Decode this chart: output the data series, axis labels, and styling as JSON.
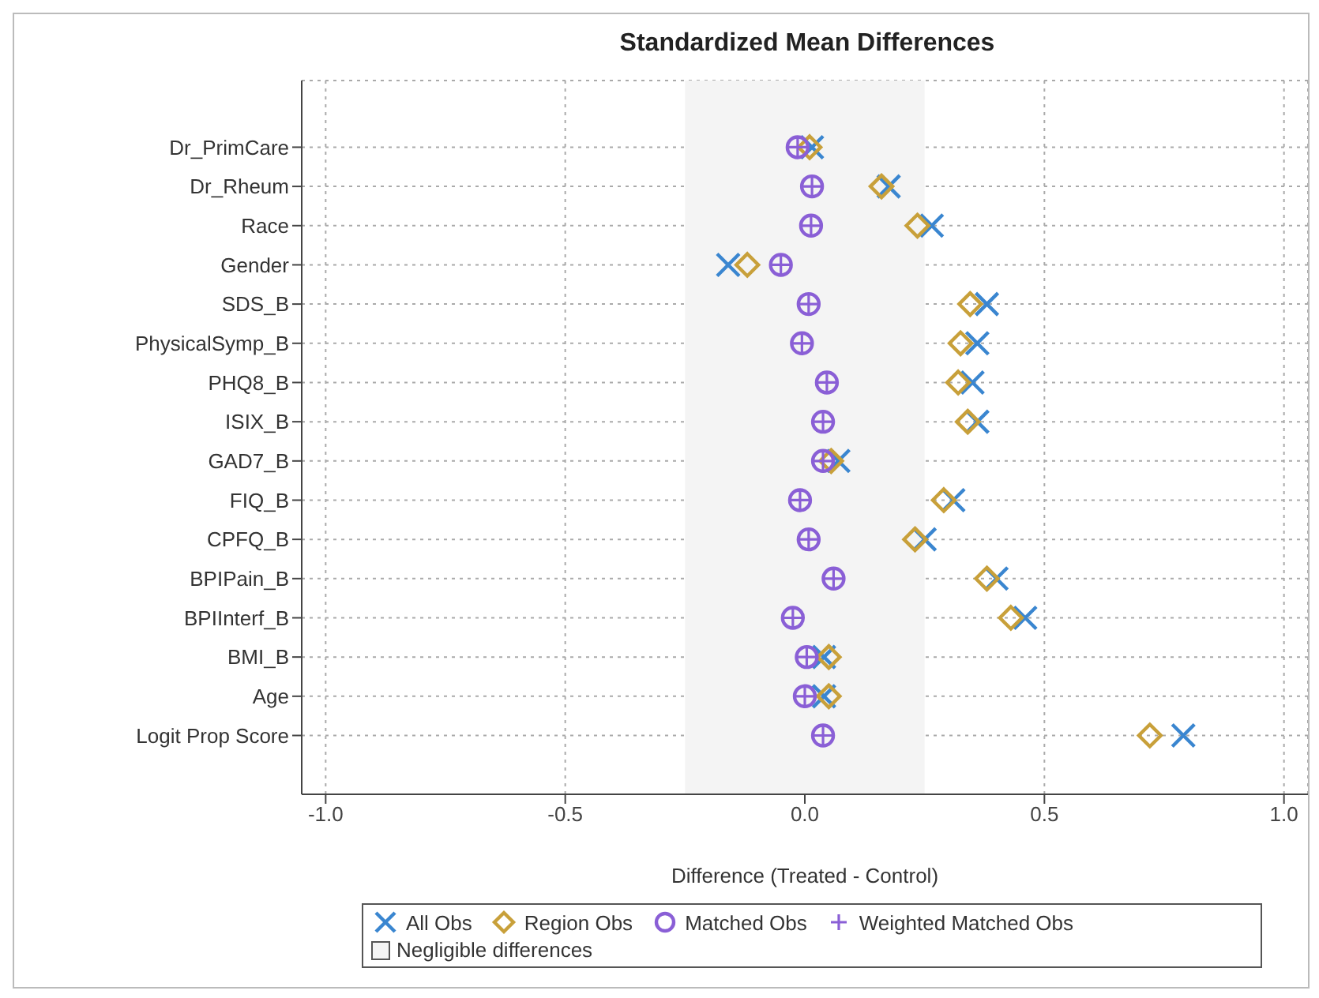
{
  "chart_data": {
    "type": "scatter",
    "title": "Standardized Mean Differences",
    "xlabel": "Difference (Treated - Control)",
    "categories": [
      "Dr_PrimCare",
      "Dr_Rheum",
      "Race",
      "Gender",
      "SDS_B",
      "PhysicalSymp_B",
      "PHQ8_B",
      "ISIX_B",
      "GAD7_B",
      "FIQ_B",
      "CPFQ_B",
      "BPIPain_B",
      "BPIInterf_B",
      "BMI_B",
      "Age",
      "Logit Prop Score"
    ],
    "orientation": "horizontal",
    "series": [
      {
        "name": "All Obs",
        "color": "#3a86d0",
        "marker": "cross",
        "values": [
          0.015,
          0.175,
          0.265,
          -0.16,
          0.38,
          0.36,
          0.35,
          0.36,
          0.07,
          0.31,
          0.25,
          0.4,
          0.46,
          0.04,
          0.04,
          0.79
        ]
      },
      {
        "name": "Region Obs",
        "color": "#c8a03a",
        "marker": "diamond",
        "values": [
          0.01,
          0.16,
          0.235,
          -0.12,
          0.345,
          0.325,
          0.32,
          0.34,
          0.055,
          0.29,
          0.23,
          0.38,
          0.43,
          0.05,
          0.05,
          0.72
        ]
      },
      {
        "name": "Matched Obs",
        "color": "#8a5fd6",
        "marker": "circle",
        "values": [
          -0.015,
          0.015,
          0.013,
          -0.05,
          0.008,
          -0.006,
          0.046,
          0.038,
          0.038,
          -0.01,
          0.008,
          0.06,
          -0.025,
          0.004,
          0.0,
          0.038
        ]
      },
      {
        "name": "Weighted Matched Obs",
        "color": "#8a5fd6",
        "marker": "plus",
        "values": [
          -0.015,
          0.015,
          0.013,
          -0.05,
          0.008,
          -0.006,
          0.046,
          0.038,
          0.038,
          -0.01,
          0.008,
          0.06,
          -0.025,
          0.004,
          0.0,
          0.038
        ]
      }
    ],
    "bands": [
      {
        "axis": "x",
        "from": -0.25,
        "to": 0.25,
        "label": "Negligible differences",
        "color": "#f4f4f4"
      }
    ],
    "xlim": [
      -1.05,
      1.05
    ],
    "xticks": [
      {
        "value": -1,
        "label": "-1.0"
      },
      {
        "value": -0.5,
        "label": "-0.5"
      },
      {
        "value": 0,
        "label": "0.0"
      },
      {
        "value": 0.5,
        "label": "0.5"
      },
      {
        "value": 1,
        "label": "1.0"
      }
    ],
    "grid": true,
    "legend": "bottom"
  }
}
